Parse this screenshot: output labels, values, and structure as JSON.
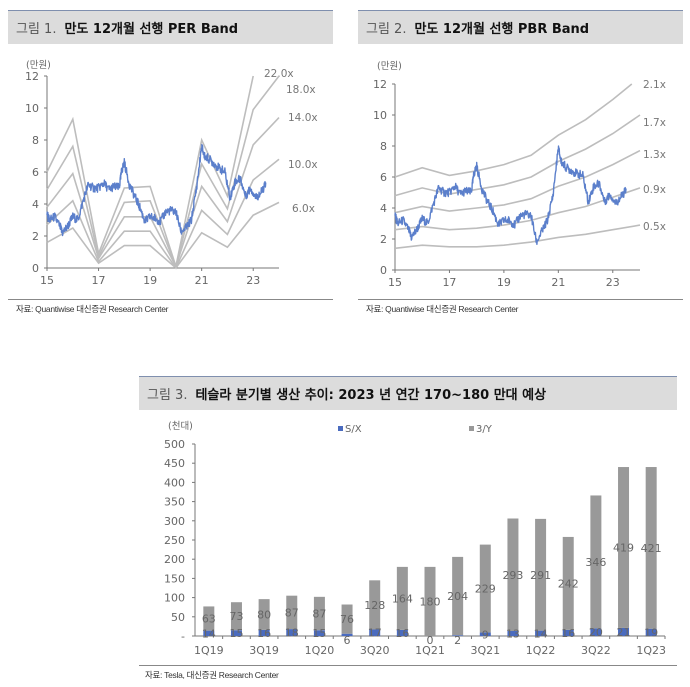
{
  "colors": {
    "price_line": "#5b7fcb",
    "band_line": "#bdbdbd",
    "sx_bar": "#4a6bbf",
    "y3_bar": "#999999",
    "title_bg": "#dcdcdc",
    "title_rule": "#7f8fae"
  },
  "figures": [
    {
      "fig_no": "그림 1.",
      "title": "만도 12개월 선행 PER Band",
      "source": "자료: Quantiwise 대신증권 Research Center"
    },
    {
      "fig_no": "그림 2.",
      "title": "만도 12개월 선행 PBR Band",
      "source": "자료: Quantiwise 대신증권 Research Center"
    },
    {
      "fig_no": "그림 3.",
      "title": "테슬라 분기별 생산 추이: 2023 년 연간 170~180 만대 예상",
      "source": "자료: Tesla, 대신증권 Research Center"
    }
  ],
  "chart_data": [
    {
      "type": "line",
      "title": "만도 12개월 선행 PER Band",
      "ylabel": "(만원)",
      "xlabel": "",
      "ylim": [
        0,
        12
      ],
      "xlim": [
        15,
        24
      ],
      "y_ticks": [
        0,
        2,
        4,
        6,
        8,
        10,
        12
      ],
      "x_ticks": [
        "15",
        "17",
        "19",
        "21",
        "23"
      ],
      "x_tick_values": [
        15,
        17,
        19,
        21,
        23
      ],
      "legend_placement": "right-inline",
      "price_series": {
        "name": "주가",
        "x": [
          15.0,
          15.1,
          15.3,
          15.5,
          15.6,
          15.8,
          16.0,
          16.2,
          16.4,
          16.6,
          16.8,
          17.0,
          17.2,
          17.4,
          17.6,
          17.8,
          17.9,
          18.0,
          18.2,
          18.4,
          18.6,
          18.8,
          19.0,
          19.2,
          19.4,
          19.6,
          19.8,
          20.0,
          20.2,
          20.4,
          20.6,
          20.8,
          21.0,
          21.1,
          21.3,
          21.5,
          21.7,
          21.9,
          22.1,
          22.3,
          22.5,
          22.7,
          22.9,
          23.1,
          23.3,
          23.5
        ],
        "y": [
          3.3,
          3.0,
          3.2,
          2.6,
          2.2,
          2.6,
          3.2,
          3.0,
          4.2,
          5.2,
          5.0,
          5.0,
          5.3,
          4.9,
          5.1,
          5.0,
          6.1,
          6.6,
          5.2,
          4.5,
          3.8,
          2.9,
          3.2,
          3.1,
          2.9,
          3.5,
          3.6,
          3.5,
          2.3,
          2.5,
          3.0,
          5.0,
          7.6,
          7.0,
          6.8,
          6.5,
          6.2,
          6.0,
          4.4,
          5.4,
          5.6,
          4.5,
          5.0,
          4.4,
          4.7,
          5.3
        ]
      },
      "bands": [
        {
          "name": "22.0x",
          "x": [
            15,
            16,
            17,
            18,
            19,
            20,
            21,
            22,
            23
          ],
          "y": [
            6.0,
            9.3,
            0.9,
            5.0,
            5.1,
            0.1,
            8.0,
            4.5,
            12.0
          ]
        },
        {
          "name": "18.0x",
          "x": [
            15,
            16,
            17,
            18,
            19,
            20,
            21,
            22,
            23,
            24
          ],
          "y": [
            4.9,
            7.6,
            0.7,
            4.1,
            4.2,
            0.1,
            6.5,
            3.7,
            9.9,
            12.0
          ]
        },
        {
          "name": "14.0x",
          "x": [
            15,
            16,
            17,
            18,
            19,
            20,
            21,
            22,
            23,
            24
          ],
          "y": [
            3.8,
            5.9,
            0.6,
            3.2,
            3.2,
            0.1,
            5.1,
            2.9,
            7.7,
            9.4
          ]
        },
        {
          "name": "10.0x",
          "x": [
            15,
            16,
            17,
            18,
            19,
            20,
            21,
            22,
            23,
            24
          ],
          "y": [
            2.7,
            4.2,
            0.4,
            2.3,
            2.3,
            0.0,
            3.6,
            2.1,
            5.5,
            6.8
          ]
        },
        {
          "name": "6.0x",
          "x": [
            15,
            16,
            17,
            18,
            19,
            20,
            21,
            22,
            23,
            24
          ],
          "y": [
            1.6,
            2.5,
            0.3,
            1.4,
            1.4,
            0.0,
            2.2,
            1.3,
            3.3,
            4.1
          ]
        }
      ]
    },
    {
      "type": "line",
      "title": "만도 12개월 선행 PBR Band",
      "ylabel": "(만원)",
      "xlabel": "",
      "ylim": [
        0,
        12
      ],
      "xlim": [
        15,
        24
      ],
      "y_ticks": [
        0,
        2,
        4,
        6,
        8,
        10,
        12
      ],
      "x_ticks": [
        "15",
        "17",
        "19",
        "21",
        "23"
      ],
      "x_tick_values": [
        15,
        17,
        19,
        21,
        23
      ],
      "legend_placement": "right-inline",
      "price_series": {
        "name": "주가",
        "x": [
          15.0,
          15.1,
          15.3,
          15.5,
          15.6,
          15.8,
          16.0,
          16.2,
          16.4,
          16.6,
          16.8,
          17.0,
          17.2,
          17.4,
          17.6,
          17.8,
          17.9,
          18.0,
          18.2,
          18.4,
          18.6,
          18.8,
          19.0,
          19.2,
          19.4,
          19.6,
          19.8,
          20.0,
          20.2,
          20.4,
          20.6,
          20.8,
          21.0,
          21.1,
          21.3,
          21.5,
          21.7,
          21.9,
          22.1,
          22.3,
          22.5,
          22.7,
          22.9,
          23.1,
          23.3,
          23.5
        ],
        "y": [
          3.5,
          3.0,
          3.2,
          2.6,
          2.1,
          2.6,
          3.3,
          3.0,
          4.2,
          5.3,
          5.0,
          5.0,
          5.4,
          4.9,
          5.1,
          5.0,
          6.2,
          6.7,
          5.2,
          4.4,
          3.8,
          2.9,
          3.2,
          3.2,
          2.9,
          3.5,
          3.6,
          3.5,
          1.8,
          2.5,
          3.2,
          4.8,
          7.9,
          7.0,
          6.6,
          6.4,
          6.2,
          6.1,
          4.4,
          5.4,
          5.6,
          4.4,
          4.9,
          4.3,
          4.7,
          5.2
        ]
      },
      "bands": [
        {
          "name": "2.1x",
          "x": [
            15,
            16,
            17,
            18,
            19,
            20,
            21,
            22,
            23,
            23.7
          ],
          "y": [
            6.0,
            6.6,
            6.1,
            6.4,
            6.8,
            7.4,
            8.7,
            9.7,
            11.0,
            12.0
          ]
        },
        {
          "name": "1.7x",
          "x": [
            15,
            16,
            17,
            18,
            19,
            20,
            21,
            22,
            23,
            24
          ],
          "y": [
            4.8,
            5.3,
            4.9,
            5.2,
            5.5,
            6.0,
            7.0,
            7.8,
            8.8,
            10.0
          ]
        },
        {
          "name": "1.3x",
          "x": [
            15,
            16,
            17,
            18,
            19,
            20,
            21,
            22,
            23,
            24
          ],
          "y": [
            3.7,
            4.1,
            3.8,
            4.0,
            4.2,
            4.6,
            5.4,
            6.0,
            6.8,
            7.7
          ]
        },
        {
          "name": "0.9x",
          "x": [
            15,
            16,
            17,
            18,
            19,
            20,
            21,
            22,
            23,
            24
          ],
          "y": [
            2.6,
            2.8,
            2.6,
            2.7,
            2.9,
            3.2,
            3.7,
            4.1,
            4.7,
            5.3
          ]
        },
        {
          "name": "0.5x",
          "x": [
            15,
            16,
            17,
            18,
            19,
            20,
            21,
            22,
            23,
            24
          ],
          "y": [
            1.4,
            1.6,
            1.5,
            1.5,
            1.6,
            1.8,
            2.1,
            2.3,
            2.6,
            2.9
          ]
        }
      ]
    },
    {
      "type": "bar",
      "stacked": true,
      "title": "테슬라 분기별 생산 추이: 2023 년 연간 170~180 만대 예상",
      "ylabel": "(천대)",
      "xlabel": "",
      "ylim": [
        0,
        500
      ],
      "y_ticks": [
        0,
        50,
        100,
        150,
        200,
        250,
        300,
        350,
        400,
        450,
        500
      ],
      "y_tick_labels": [
        "-",
        "50",
        "100",
        "150",
        "200",
        "250",
        "300",
        "350",
        "400",
        "450",
        "500"
      ],
      "legend_placement": "top",
      "categories": [
        "1Q19",
        "2Q19",
        "3Q19",
        "4Q19",
        "1Q20",
        "2Q20",
        "3Q20",
        "4Q20",
        "1Q21",
        "2Q21",
        "3Q21",
        "4Q21",
        "1Q22",
        "2Q22",
        "3Q22",
        "4Q22",
        "1Q23"
      ],
      "x_tick_labels": [
        "1Q19",
        "",
        "3Q19",
        "",
        "1Q20",
        "",
        "3Q20",
        "",
        "1Q21",
        "",
        "3Q21",
        "",
        "1Q22",
        "",
        "3Q22",
        "",
        "1Q23"
      ],
      "series": [
        {
          "name": "S/X",
          "values": [
            14,
            15,
            16,
            18,
            15,
            6,
            17,
            16,
            0,
            2,
            9,
            13,
            14,
            16,
            20,
            21,
            19
          ]
        },
        {
          "name": "3/Y",
          "values": [
            63,
            73,
            80,
            87,
            87,
            76,
            128,
            164,
            180,
            204,
            229,
            293,
            291,
            242,
            346,
            419,
            421
          ]
        }
      ]
    }
  ]
}
